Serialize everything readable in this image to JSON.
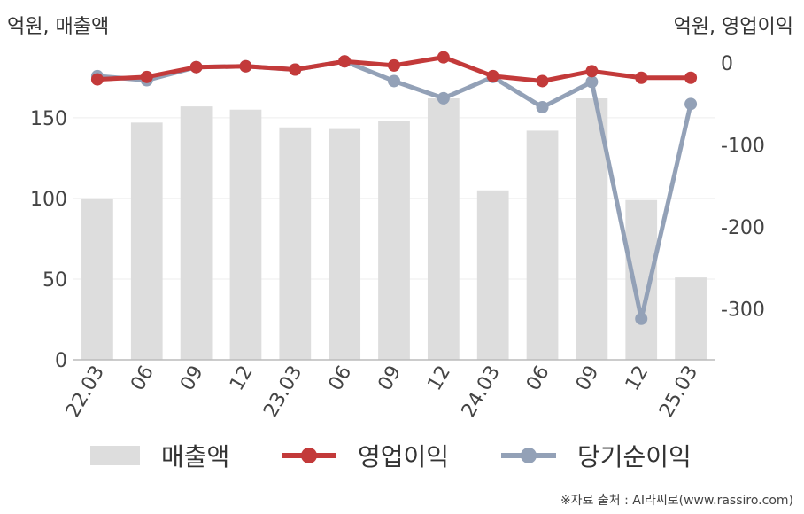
{
  "units": {
    "left": "억원, 매출액",
    "right": "억원, 영업이익"
  },
  "source": "※자료 출처 : AI라씨로(www.rassiro.com)",
  "legend": {
    "sales": "매출액",
    "op": "영업이익",
    "net": "당기순이익"
  },
  "colors": {
    "sales": "#dddddd",
    "op": "#c33a3a",
    "net": "#93a1b7",
    "grid": "#eeeeee",
    "axis": "#bbbbbb"
  },
  "chart_data": {
    "type": "bar+line",
    "categories": [
      "22.03",
      "06",
      "09",
      "12",
      "23.03",
      "06",
      "09",
      "12",
      "24.03",
      "06",
      "09",
      "12",
      "25.03"
    ],
    "left_axis": {
      "label": "억원, 매출액",
      "ticks": [
        0,
        50,
        100,
        150
      ],
      "range": [
        0,
        190
      ]
    },
    "right_axis": {
      "label": "억원, 영업이익",
      "ticks": [
        0,
        -100,
        -200,
        -300
      ],
      "range": [
        -362,
        12
      ]
    },
    "series": [
      {
        "name": "매출액",
        "type": "bar",
        "axis": "left",
        "values": [
          100,
          147,
          157,
          155,
          144,
          143,
          148,
          162,
          105,
          142,
          162,
          99,
          51
        ]
      },
      {
        "name": "영업이익",
        "type": "line",
        "axis": "right",
        "values": [
          -20,
          -17,
          -5,
          -4,
          -8,
          2,
          -3,
          7,
          -16,
          -22,
          -10,
          -18,
          -18
        ]
      },
      {
        "name": "당기순이익",
        "type": "line",
        "axis": "right",
        "values": [
          -16,
          -21,
          -5,
          -4,
          -8,
          2,
          -22,
          -43,
          -17,
          -54,
          -23,
          -312,
          -50
        ]
      }
    ]
  }
}
